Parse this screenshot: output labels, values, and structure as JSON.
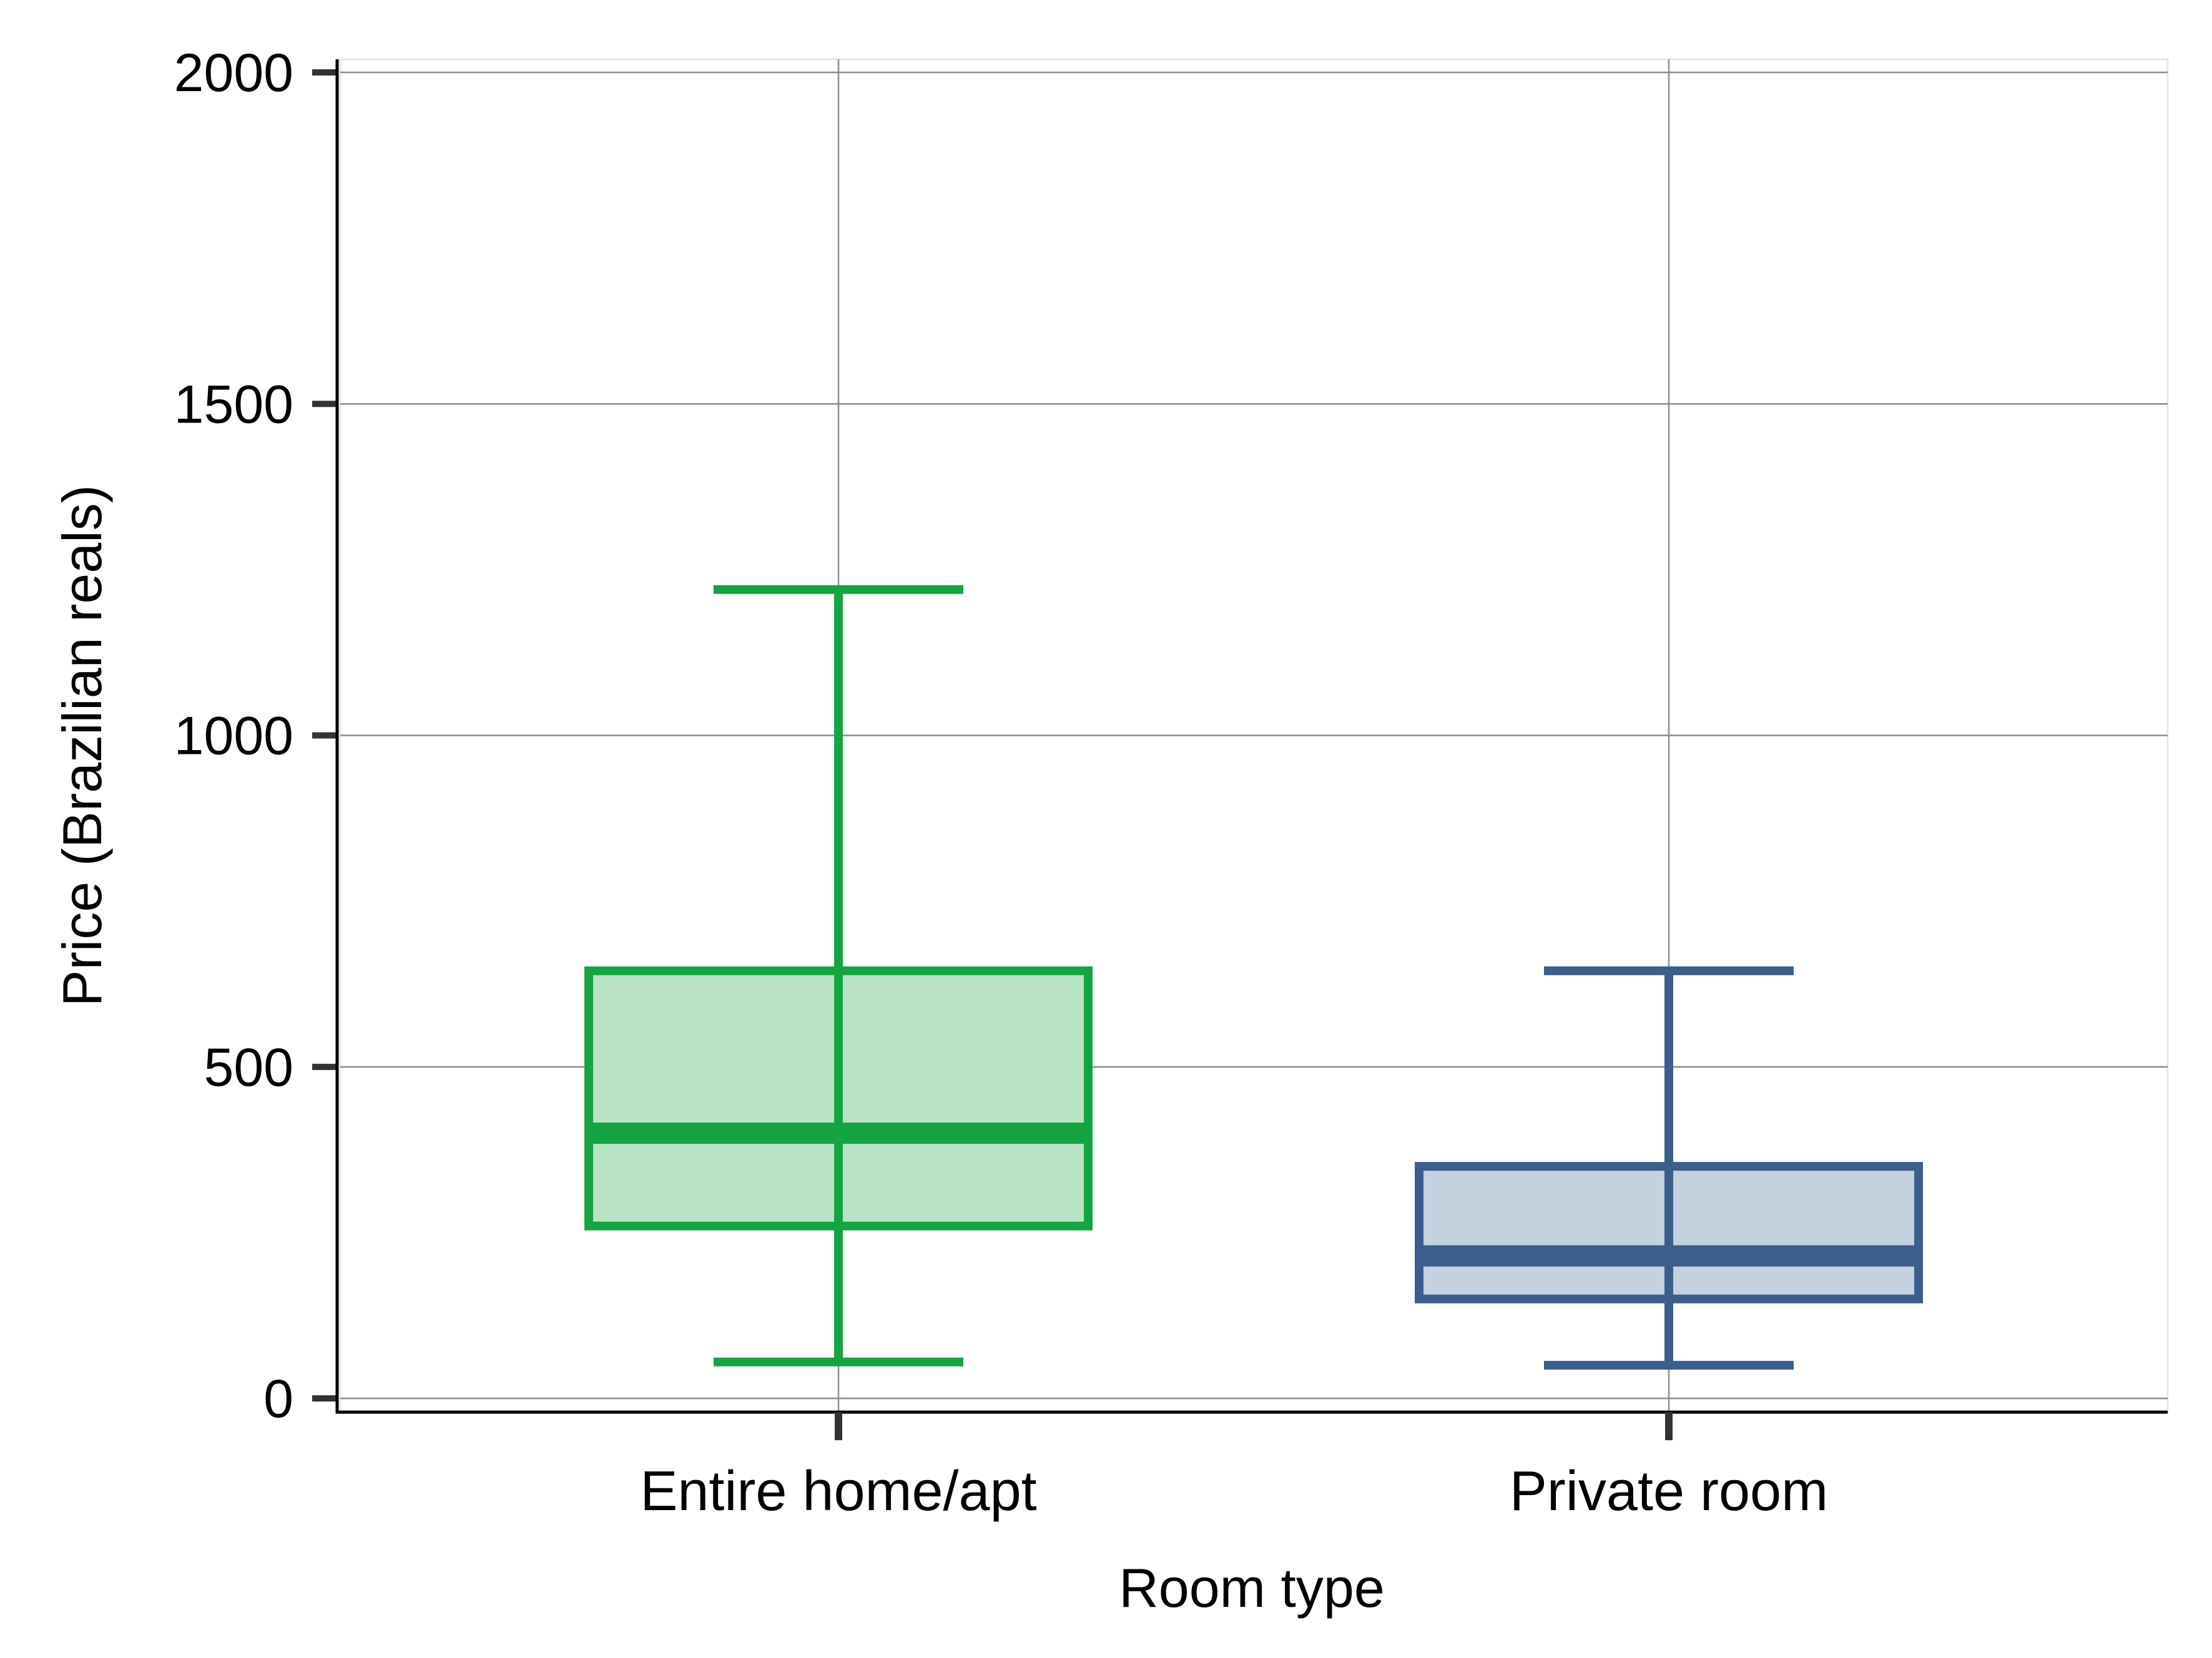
{
  "chart_data": {
    "type": "boxplot",
    "title": "",
    "xlabel": "Room type",
    "ylabel": "Price (Brazilian reals)",
    "ylim": [
      0,
      2000
    ],
    "yticks": [
      0,
      500,
      1000,
      1500,
      2000
    ],
    "grid": true,
    "categories": [
      "Entire home/apt",
      "Private room"
    ],
    "boxes": [
      {
        "category": "Entire home/apt",
        "whisker_low": 55,
        "q1": 260,
        "median": 400,
        "q3": 645,
        "whisker_high": 1220,
        "color": "#13a541",
        "fill": "#b8e4c5"
      },
      {
        "category": "Private room",
        "whisker_low": 50,
        "q1": 150,
        "median": 215,
        "q3": 350,
        "whisker_high": 645,
        "color": "#3b5e8c",
        "fill": "#c4d1df"
      }
    ]
  }
}
